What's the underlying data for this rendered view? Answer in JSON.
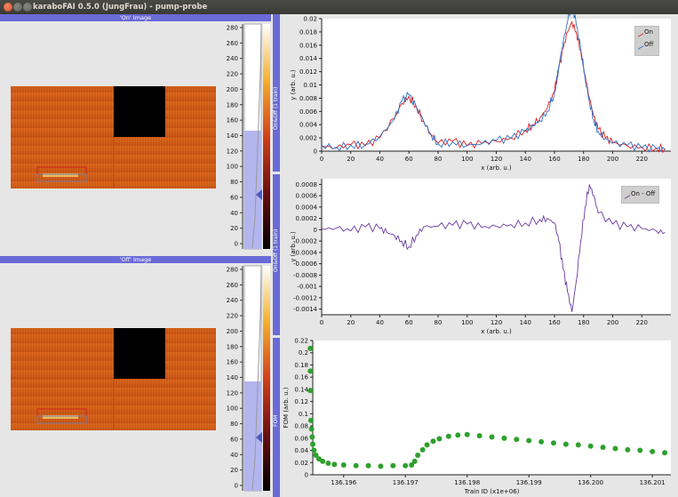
{
  "window": {
    "title": "karaboFAI 0.5.0 (JungFrau) - pump-probe"
  },
  "on_image": {
    "header": "'On' Image",
    "colorbar_ticks": [
      "280",
      "260",
      "240",
      "220",
      "200",
      "180",
      "160",
      "140",
      "120",
      "100",
      "80",
      "60",
      "40",
      "20",
      "0"
    ],
    "histogram_level": 0.58
  },
  "off_image": {
    "header": "'Off' Image",
    "colorbar_ticks": [
      "280",
      "260",
      "240",
      "220",
      "200",
      "180",
      "160",
      "140",
      "120",
      "100",
      "80",
      "60",
      "40",
      "20",
      "0"
    ],
    "histogram_level": 0.58
  },
  "plot_on_off": {
    "side_label": "On&Off (1 train)",
    "ylabel": "y (arb. u.)",
    "xlabel": "x (arb. u.)",
    "legend": [
      "On",
      "Off"
    ],
    "colors": {
      "on": "#d62020",
      "off": "#2a6fc9"
    }
  },
  "plot_diff": {
    "side_label": "On&Off (1 train)",
    "ylabel": "y (arb. u.)",
    "xlabel": "x (arb. u.)",
    "legend": [
      "On - Off"
    ],
    "colors": {
      "diff": "#6a3aa0"
    }
  },
  "plot_fom": {
    "side_label": "FOM",
    "ylabel": "FOM (arb. u.)",
    "xlabel": "Train ID (x1e+06)",
    "colors": {
      "points": "#2ea02e"
    }
  },
  "chart_data": [
    {
      "type": "line",
      "xlabel": "x (arb. u.)",
      "ylabel": "y (arb. u.)",
      "xlim": [
        0,
        240
      ],
      "ylim": [
        0,
        0.02
      ],
      "x_ticks": [
        "0",
        "20",
        "40",
        "60",
        "80",
        "100",
        "120",
        "140",
        "160",
        "180",
        "200",
        "220"
      ],
      "y_ticks": [
        "0",
        "0.002",
        "0.004",
        "0.006",
        "0.008",
        "0.01",
        "0.012",
        "0.014",
        "0.016",
        "0.018",
        "0.02"
      ],
      "series": [
        {
          "name": "On",
          "x": [
            0,
            10,
            20,
            30,
            40,
            50,
            55,
            60,
            65,
            70,
            75,
            80,
            90,
            100,
            110,
            120,
            130,
            140,
            145,
            150,
            155,
            160,
            163,
            166,
            169,
            172,
            175,
            178,
            181,
            184,
            187,
            190,
            195,
            200,
            210,
            220,
            230,
            236
          ],
          "y": [
            0.0008,
            0.0005,
            0.001,
            0.0008,
            0.002,
            0.005,
            0.0072,
            0.0083,
            0.0068,
            0.0045,
            0.0025,
            0.0012,
            0.0015,
            0.0008,
            0.0012,
            0.0015,
            0.002,
            0.0032,
            0.004,
            0.005,
            0.0065,
            0.009,
            0.0125,
            0.0155,
            0.018,
            0.0195,
            0.018,
            0.0152,
            0.0115,
            0.008,
            0.0052,
            0.0033,
            0.002,
            0.0013,
            0.0008,
            0.0006,
            0.0005,
            0.0004
          ]
        },
        {
          "name": "Off",
          "x": [
            0,
            10,
            20,
            30,
            40,
            50,
            55,
            60,
            65,
            70,
            75,
            80,
            90,
            100,
            110,
            120,
            130,
            140,
            145,
            150,
            155,
            160,
            163,
            166,
            169,
            172,
            175,
            178,
            181,
            184,
            187,
            190,
            195,
            200,
            210,
            220,
            230,
            236
          ],
          "y": [
            0.0009,
            0.0006,
            0.0009,
            0.001,
            0.0022,
            0.0048,
            0.0075,
            0.0085,
            0.0066,
            0.0046,
            0.0026,
            0.0011,
            0.0014,
            0.0009,
            0.0011,
            0.0016,
            0.0019,
            0.003,
            0.0038,
            0.0046,
            0.006,
            0.0088,
            0.0128,
            0.0165,
            0.0195,
            0.0225,
            0.019,
            0.0155,
            0.011,
            0.0075,
            0.0048,
            0.003,
            0.0019,
            0.0012,
            0.0009,
            0.0005,
            0.0004,
            0.0002
          ]
        }
      ]
    },
    {
      "type": "line",
      "xlabel": "x (arb. u.)",
      "ylabel": "y (arb. u.)",
      "xlim": [
        0,
        240
      ],
      "ylim": [
        -0.0015,
        0.0009
      ],
      "x_ticks": [
        "0",
        "20",
        "40",
        "60",
        "80",
        "100",
        "120",
        "140",
        "160",
        "180",
        "200",
        "220"
      ],
      "y_ticks": [
        "0.0008",
        "0.0006",
        "0.0004",
        "0.0002",
        "0",
        "-0.0002",
        "-0.0004",
        "-0.0006",
        "-0.0008",
        "-0.001",
        "-0.0012",
        "-0.0014"
      ],
      "series": [
        {
          "name": "On - Off",
          "x": [
            0,
            10,
            20,
            30,
            40,
            45,
            50,
            55,
            60,
            65,
            70,
            80,
            90,
            100,
            110,
            120,
            130,
            140,
            150,
            155,
            160,
            163,
            166,
            169,
            172,
            175,
            178,
            181,
            184,
            187,
            190,
            200,
            210,
            220,
            230,
            236
          ],
          "y": [
            1e-05,
            3e-05,
            -2e-05,
            5e-05,
            2e-05,
            -5e-05,
            -0.0001,
            -0.0002,
            -0.0003,
            -0.0001,
            5e-05,
            6e-05,
            8e-05,
            0.0001,
            4e-05,
            6e-05,
            9e-05,
            0.00012,
            0.00018,
            0.0002,
            0.00012,
            -0.0002,
            -0.0007,
            -0.0011,
            -0.00145,
            -0.0009,
            -0.0002,
            0.0004,
            0.0008,
            0.0006,
            0.0003,
            0.0001,
            5e-05,
            2e-05,
            -2e-05,
            -5e-05
          ]
        }
      ]
    },
    {
      "type": "scatter",
      "xlabel": "Train ID (x1e+06)",
      "ylabel": "FOM (arb. u.)",
      "xlim": [
        136.1955,
        136.2013
      ],
      "ylim": [
        0,
        0.22
      ],
      "x_ticks": [
        "136.196",
        "136.197",
        "136.198",
        "136.199",
        "136.200",
        "136.201"
      ],
      "y_ticks": [
        "0.22",
        "0.2",
        "0.18",
        "0.16",
        "0.14",
        "0.12",
        "0.1",
        "0.08",
        "0.06",
        "0.04",
        "0.02",
        "0"
      ],
      "series": [
        {
          "name": "FOM",
          "x": [
            136.19546,
            136.19546,
            136.19546,
            136.19547,
            136.19548,
            136.19549,
            136.1955,
            136.19552,
            136.19555,
            136.1956,
            136.19566,
            136.19575,
            136.19585,
            136.196,
            136.1962,
            136.1964,
            136.1966,
            136.1968,
            136.197,
            136.1971,
            136.19715,
            136.1972,
            136.19728,
            136.19735,
            136.19745,
            136.19755,
            136.1977,
            136.19785,
            136.198,
            136.1982,
            136.1984,
            136.1986,
            136.1988,
            136.199,
            136.1992,
            136.1994,
            136.1996,
            136.1998,
            136.2,
            136.2002,
            136.2004,
            136.2006,
            136.2008,
            136.201,
            136.2012
          ],
          "y": [
            0.207,
            0.17,
            0.138,
            0.089,
            0.075,
            0.062,
            0.05,
            0.04,
            0.032,
            0.026,
            0.022,
            0.019,
            0.017,
            0.016,
            0.015,
            0.015,
            0.014,
            0.015,
            0.015,
            0.016,
            0.022,
            0.032,
            0.041,
            0.049,
            0.055,
            0.059,
            0.063,
            0.065,
            0.066,
            0.064,
            0.062,
            0.06,
            0.058,
            0.056,
            0.054,
            0.052,
            0.05,
            0.049,
            0.047,
            0.045,
            0.043,
            0.041,
            0.04,
            0.038,
            0.036
          ]
        }
      ]
    }
  ]
}
